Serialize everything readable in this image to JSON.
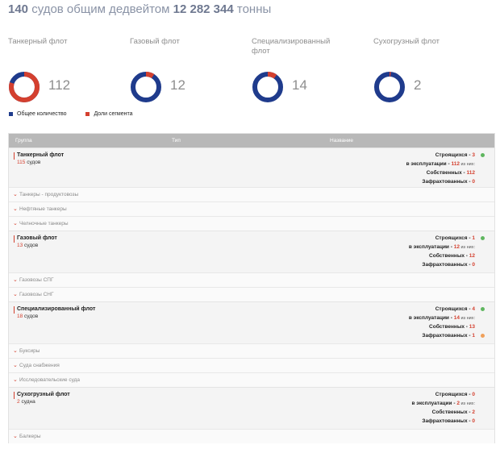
{
  "headline": {
    "count": "140",
    "mid": " судов общим дедвейтом ",
    "dwt": "12 282 344",
    "unit": " тонны"
  },
  "colors": {
    "total": "#1f3b8c",
    "segment": "#d4402f",
    "ok": "#5fb65f",
    "warn": "#f0a05a"
  },
  "fleets": [
    {
      "label": "Танкерный флот",
      "value": "112",
      "segment_share": 0.8
    },
    {
      "label": "Газовый флот",
      "value": "12",
      "segment_share": 0.09
    },
    {
      "label": "Специализированный флот",
      "value": "14",
      "segment_share": 0.1
    },
    {
      "label": "Сухогрузный флот",
      "value": "2",
      "segment_share": 0.014
    }
  ],
  "legend": {
    "total": "Общее количество",
    "segment": "Доли сегмента"
  },
  "table": {
    "headers": {
      "group": "Группа",
      "type": "Тип",
      "name": "Название"
    },
    "groups": [
      {
        "name": "Танкерный флот",
        "count": "115",
        "count_unit": "судов",
        "stats": {
          "building_label": "Строящихся - ",
          "building": "3",
          "operating_label": "в эксплуатации - ",
          "operating": "112",
          "operating_suffix": " из них:",
          "own_label": "Собственных - ",
          "own": "112",
          "chartered_label": "Зафрахтованных - ",
          "chartered": "0"
        },
        "subs": [
          "Танкеры - продуктовозы",
          "Нефтяные танкеры",
          "Челночные танкеры"
        ]
      },
      {
        "name": "Газовый флот",
        "count": "13",
        "count_unit": "судов",
        "stats": {
          "building_label": "Строящихся - ",
          "building": "1",
          "operating_label": "в эксплуатации - ",
          "operating": "12",
          "operating_suffix": " из них:",
          "own_label": "Собственных - ",
          "own": "12",
          "chartered_label": "Зафрахтованных - ",
          "chartered": "0"
        },
        "subs": [
          "Газовозы СПГ",
          "Газовозы СНГ"
        ]
      },
      {
        "name": "Специализированный флот",
        "count": "18",
        "count_unit": "судов",
        "stats": {
          "building_label": "Строящихся - ",
          "building": "4",
          "operating_label": "в эксплуатации - ",
          "operating": "14",
          "operating_suffix": " из них:",
          "own_label": "Собственных - ",
          "own": "13",
          "chartered_label": "Зафрахтованных - ",
          "chartered": "1"
        },
        "subs": [
          "Буксиры",
          "Суда снабжения",
          "Исследовательские суда"
        ]
      },
      {
        "name": "Сухогрузный флот",
        "count": "2",
        "count_unit": "судна",
        "stats": {
          "building_label": "Строящихся - ",
          "building": "0",
          "operating_label": "в эксплуатации - ",
          "operating": "2",
          "operating_suffix": " из них:",
          "own_label": "Собственных - ",
          "own": "2",
          "chartered_label": "Зафрахтованных - ",
          "chartered": "0"
        },
        "subs": [
          "Балкеры"
        ]
      }
    ]
  }
}
